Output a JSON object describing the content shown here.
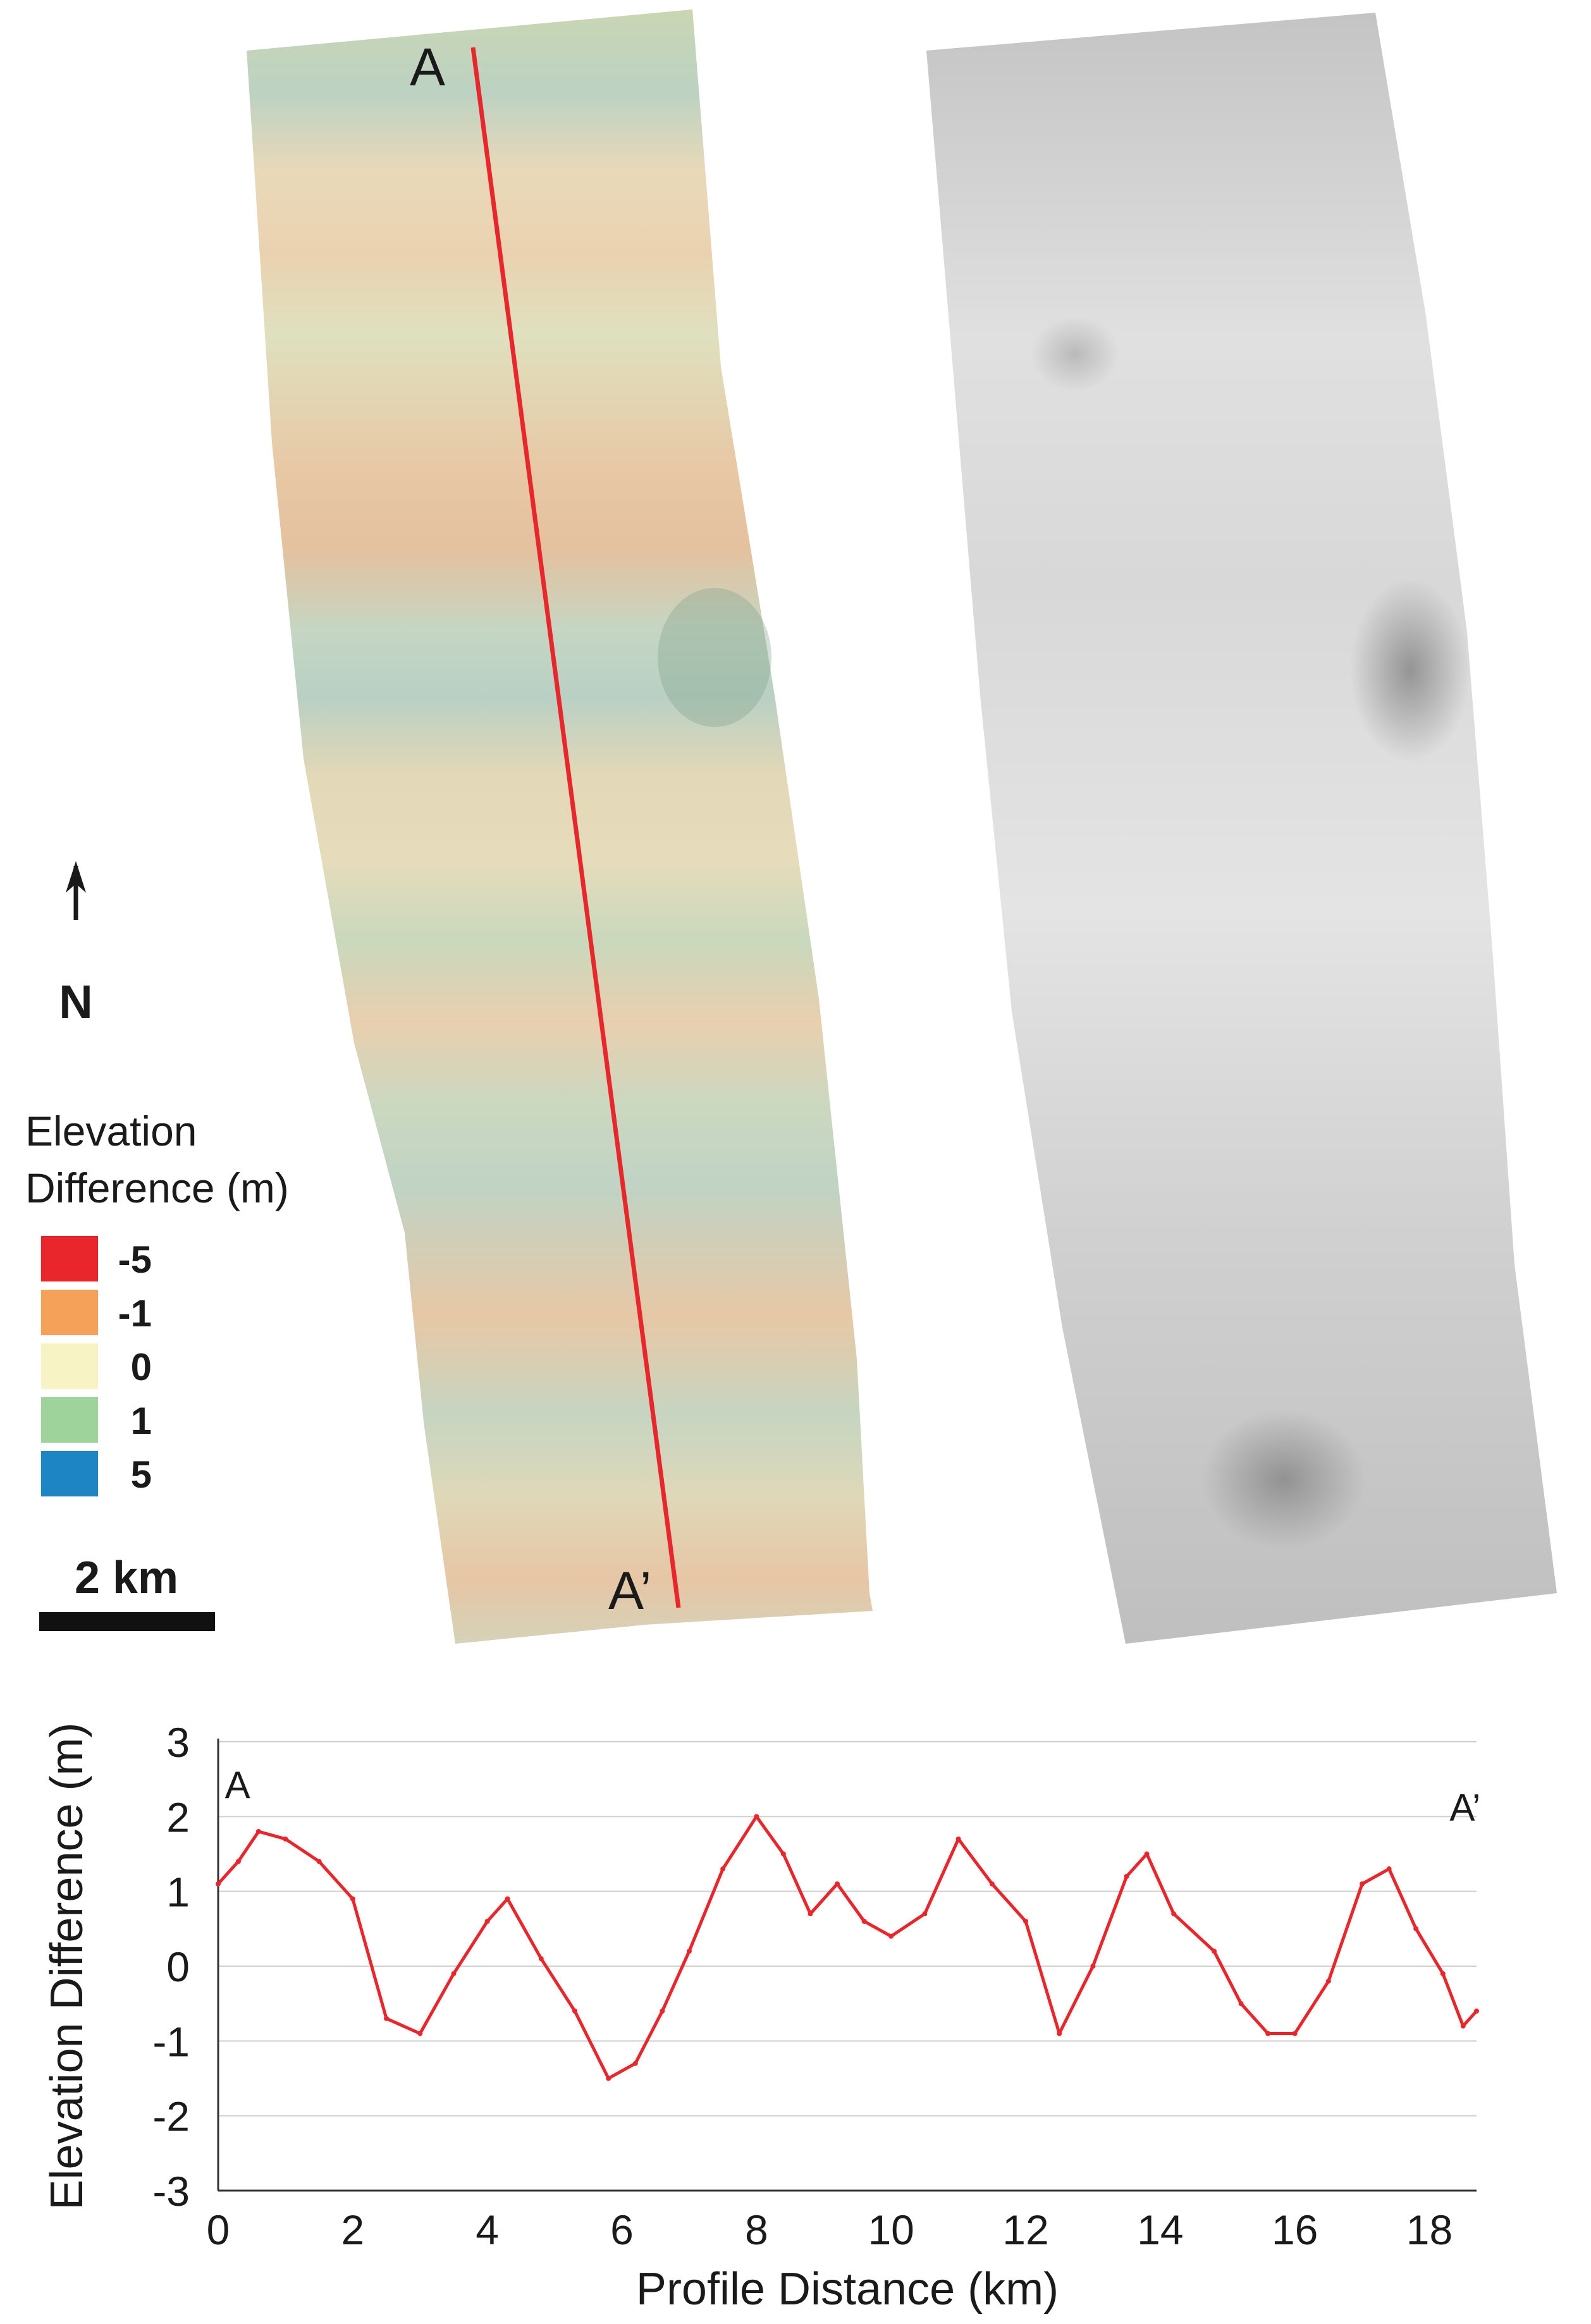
{
  "map": {
    "label_a": "A",
    "label_a_prime": "A’"
  },
  "north_arrow": {
    "label": "N"
  },
  "legend": {
    "title_line1": "Elevation",
    "title_line2": "Difference (m)",
    "items": [
      {
        "label": "-5",
        "color": "#e8262b"
      },
      {
        "label": "-1",
        "color": "#f5a15a"
      },
      {
        "label": "0",
        "color": "#f7f3c4"
      },
      {
        "label": "1",
        "color": "#9fd39c"
      },
      {
        "label": "5",
        "color": "#1e85c4"
      }
    ]
  },
  "scale_bar": {
    "label": "2 km"
  },
  "chart_data": {
    "type": "line",
    "xlabel": "Profile Distance (km)",
    "ylabel": "Elevation Difference (m)",
    "xlim": [
      0,
      18.7
    ],
    "ylim": [
      -3,
      3
    ],
    "xticks": [
      0,
      2,
      4,
      6,
      8,
      10,
      12,
      14,
      16,
      18
    ],
    "yticks": [
      3,
      2,
      1,
      0,
      -1,
      -2,
      -3
    ],
    "grid": "horizontal",
    "line_color": "#e8262b",
    "annotations": [
      {
        "text": "A",
        "x": 0.1,
        "y": 2.25
      },
      {
        "text": "A’",
        "x": 18.3,
        "y": 1.95
      }
    ],
    "series": [
      {
        "x": [
          0,
          0.3,
          0.6,
          1.0,
          1.5,
          2.0,
          2.5,
          3.0,
          3.5,
          4.0,
          4.3,
          4.8,
          5.3,
          5.8,
          6.2,
          6.6,
          7.0,
          7.5,
          8.0,
          8.4,
          8.8,
          9.2,
          9.6,
          10.0,
          10.5,
          11.0,
          11.5,
          12.0,
          12.5,
          13.0,
          13.5,
          13.8,
          14.2,
          14.8,
          15.2,
          15.6,
          16.0,
          16.5,
          17.0,
          17.4,
          17.8,
          18.2,
          18.5,
          18.7
        ],
        "y": [
          1.1,
          1.4,
          1.8,
          1.7,
          1.4,
          0.9,
          -0.7,
          -0.9,
          -0.1,
          0.6,
          0.9,
          0.1,
          -0.6,
          -1.5,
          -1.3,
          -0.6,
          0.2,
          1.3,
          2.0,
          1.5,
          0.7,
          1.1,
          0.6,
          0.4,
          0.7,
          1.7,
          1.1,
          0.6,
          -0.9,
          0.0,
          1.2,
          1.5,
          0.7,
          0.2,
          -0.5,
          -0.9,
          -0.9,
          -0.2,
          1.1,
          1.3,
          0.5,
          -0.1,
          -0.8,
          -0.6
        ]
      }
    ]
  }
}
